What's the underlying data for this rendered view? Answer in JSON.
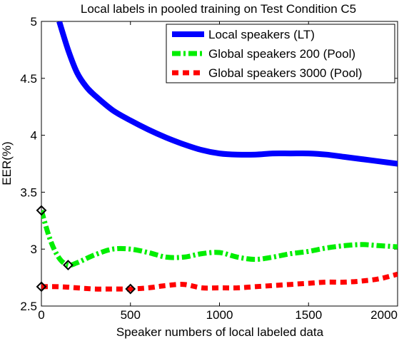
{
  "chart_data": {
    "type": "line",
    "title": "Local labels in pooled training on Test Condition C5",
    "xlabel": "Speaker numbers of local labeled data",
    "ylabel": "EER(%)",
    "xlim": [
      0,
      2000
    ],
    "ylim": [
      2.5,
      5
    ],
    "xticks": [
      0,
      500,
      1000,
      1500,
      2000
    ],
    "yticks": [
      2.5,
      3,
      3.5,
      4,
      4.5,
      5
    ],
    "xtick_labels": [
      "0",
      "500",
      "1000",
      "1500",
      "2000"
    ],
    "ytick_labels": [
      "2.5",
      "3",
      "3.5",
      "4",
      "4.5",
      "5"
    ],
    "grid": false,
    "legend_position": "top-right",
    "series": [
      {
        "name": "Local speakers (LT)",
        "color": "#0000ff",
        "style": "solid",
        "x": [
          100,
          150,
          200,
          250,
          300,
          400,
          500,
          600,
          700,
          800,
          900,
          1000,
          1100,
          1200,
          1300,
          1400,
          1500,
          1600,
          1700,
          1800,
          1900,
          2000
        ],
        "y": [
          5.0,
          4.75,
          4.55,
          4.43,
          4.35,
          4.22,
          4.13,
          4.05,
          3.98,
          3.92,
          3.87,
          3.84,
          3.83,
          3.83,
          3.84,
          3.84,
          3.84,
          3.83,
          3.81,
          3.79,
          3.77,
          3.75
        ],
        "markers": []
      },
      {
        "name": "Global speakers 200 (Pool)",
        "color": "#00ee00",
        "style": "dashdot",
        "x": [
          0,
          50,
          100,
          150,
          200,
          300,
          400,
          500,
          600,
          700,
          800,
          900,
          1000,
          1100,
          1200,
          1300,
          1400,
          1500,
          1600,
          1700,
          1800,
          1900,
          2000
        ],
        "y": [
          3.34,
          3.08,
          2.92,
          2.86,
          2.88,
          2.95,
          3.0,
          3.0,
          2.97,
          2.93,
          2.93,
          2.96,
          2.97,
          2.93,
          2.91,
          2.93,
          2.96,
          2.98,
          3.01,
          3.03,
          3.04,
          3.03,
          3.02
        ],
        "markers": [
          [
            0,
            3.34
          ],
          [
            150,
            2.86
          ]
        ]
      },
      {
        "name": "Global speakers 3000 (Pool)",
        "color": "#ff0000",
        "style": "dashed",
        "x": [
          0,
          100,
          200,
          300,
          400,
          500,
          600,
          700,
          800,
          900,
          1000,
          1100,
          1200,
          1300,
          1400,
          1500,
          1600,
          1700,
          1800,
          1900,
          2000
        ],
        "y": [
          2.67,
          2.67,
          2.66,
          2.65,
          2.65,
          2.65,
          2.66,
          2.68,
          2.69,
          2.66,
          2.66,
          2.66,
          2.67,
          2.68,
          2.69,
          2.7,
          2.71,
          2.71,
          2.72,
          2.74,
          2.78
        ],
        "markers": [
          [
            0,
            2.67
          ],
          [
            500,
            2.65
          ]
        ]
      }
    ]
  }
}
